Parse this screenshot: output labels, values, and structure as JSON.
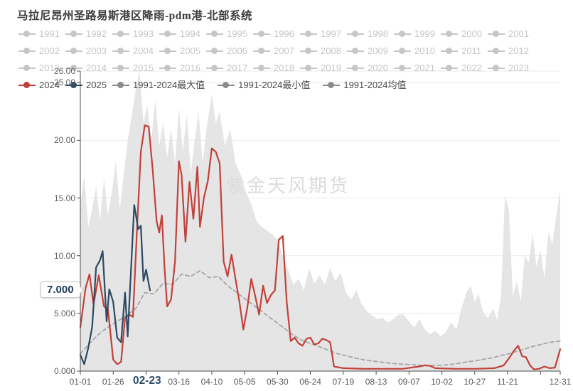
{
  "title": "马拉尼昂州圣路易斯港区降雨-pdm港-北部系统",
  "watermark": "紫金天风期货",
  "legend": {
    "muted_color": "#c6c6c6",
    "years": [
      "1991",
      "1992",
      "1993",
      "1994",
      "1995",
      "1996",
      "1997",
      "1998",
      "1999",
      "2000",
      "2001",
      "2002",
      "2003",
      "2004",
      "2005",
      "2006",
      "2007",
      "2008",
      "2009",
      "2010",
      "2011",
      "2012",
      "2013",
      "2014",
      "2015",
      "2016",
      "2017",
      "2018",
      "2019",
      "2020",
      "2021",
      "2022",
      "2023"
    ],
    "highlight": [
      {
        "key": "2024",
        "label": "2024",
        "color": "#c1413a"
      },
      {
        "key": "2025",
        "label": "2025",
        "color": "#2c4a63"
      },
      {
        "key": "max",
        "label": "1991-2024最大值",
        "color": "#8c8c8c"
      },
      {
        "key": "min",
        "label": "1991-2024最小值",
        "color": "#8c8c8c"
      },
      {
        "key": "avg",
        "label": "1991-2024均值",
        "color": "#8c8c8c"
      }
    ]
  },
  "chart_data": {
    "type": "line",
    "title": "马拉尼昂州圣路易斯港区降雨-pdm港-北部系统",
    "x_unit": "day-of-year",
    "xlim": [
      0,
      365
    ],
    "ylim": [
      0,
      26
    ],
    "grid_values": [
      5,
      10,
      15,
      20,
      25,
      26
    ],
    "y_ticks": [
      {
        "value": 26,
        "label": "26.00"
      },
      {
        "value": 25,
        "label": "25.00"
      },
      {
        "value": 20,
        "label": "20.00"
      },
      {
        "value": 15,
        "label": "15.00"
      },
      {
        "value": 10,
        "label": "10.00"
      },
      {
        "value": 5,
        "label": "5.000"
      },
      {
        "value": 0,
        "label": "0.000"
      }
    ],
    "x_ticks": [
      {
        "day": 0,
        "label": "01-01"
      },
      {
        "day": 25,
        "label": "01-26"
      },
      {
        "day": 50,
        "label": ""
      },
      {
        "day": 75,
        "label": "03-16"
      },
      {
        "day": 100,
        "label": "04-10"
      },
      {
        "day": 125,
        "label": "05-05"
      },
      {
        "day": 150,
        "label": "05-30"
      },
      {
        "day": 175,
        "label": "06-24"
      },
      {
        "day": 200,
        "label": "07-19"
      },
      {
        "day": 225,
        "label": "08-13"
      },
      {
        "day": 250,
        "label": "09-07"
      },
      {
        "day": 275,
        "label": "10-02"
      },
      {
        "day": 300,
        "label": "10-27"
      },
      {
        "day": 325,
        "label": "11-21"
      },
      {
        "day": 350,
        "label": ""
      },
      {
        "day": 365,
        "label": "12-31"
      }
    ],
    "pointer": {
      "x_label": "02-23",
      "y_label": "7.000",
      "day": 53,
      "value": 7.0
    },
    "series": [
      {
        "name": "1991-2024最大值",
        "type": "area",
        "color": "#e5e5e5",
        "x": [
          0,
          3,
          6,
          9,
          12,
          15,
          18,
          21,
          24,
          27,
          30,
          33,
          36,
          39,
          42,
          45,
          48,
          51,
          54,
          57,
          60,
          63,
          66,
          69,
          72,
          75,
          78,
          81,
          84,
          87,
          90,
          93,
          96,
          100,
          103,
          106,
          110,
          114,
          118,
          122,
          126,
          130,
          134,
          138,
          142,
          146,
          150,
          154,
          158,
          162,
          166,
          170,
          174,
          178,
          182,
          186,
          190,
          194,
          198,
          202,
          206,
          210,
          214,
          218,
          222,
          226,
          230,
          234,
          238,
          242,
          246,
          250,
          254,
          258,
          262,
          266,
          270,
          274,
          278,
          282,
          286,
          290,
          294,
          297,
          300,
          303,
          306,
          310,
          314,
          317,
          320,
          323,
          326,
          329,
          332,
          335,
          338,
          341,
          344,
          347,
          350,
          353,
          356,
          359,
          362,
          365
        ],
        "y": [
          14.5,
          16.9,
          12.5,
          14.0,
          16.0,
          13.0,
          16.7,
          13.5,
          15.5,
          18.2,
          14.0,
          17.0,
          20.0,
          22.0,
          24.3,
          26.0,
          21.5,
          23.0,
          20.0,
          23.5,
          19.5,
          21.5,
          18.5,
          21.0,
          18.0,
          22.8,
          19.0,
          22.3,
          17.2,
          20.0,
          22.5,
          18.0,
          21.0,
          24.0,
          21.5,
          22.5,
          19.5,
          21.0,
          18.0,
          17.0,
          15.5,
          14.5,
          13.0,
          12.5,
          12.2,
          11.8,
          11.4,
          10.0,
          8.8,
          7.5,
          8.0,
          7.0,
          8.9,
          7.6,
          8.3,
          7.5,
          8.9,
          7.8,
          8.5,
          6.8,
          6.2,
          7.0,
          5.8,
          5.2,
          4.8,
          4.5,
          4.6,
          4.2,
          4.5,
          4.9,
          4.9,
          4.3,
          3.8,
          4.5,
          3.6,
          3.2,
          3.5,
          3.0,
          3.4,
          4.2,
          3.6,
          5.5,
          6.9,
          7.4,
          6.0,
          6.7,
          5.2,
          4.6,
          5.4,
          4.4,
          6.5,
          15.2,
          14.0,
          6.5,
          7.8,
          6.0,
          10.0,
          9.4,
          11.9,
          9.0,
          10.5,
          8.0,
          12.0,
          11.0,
          13.5,
          15.7
        ]
      },
      {
        "name": "1991-2024最小值",
        "type": "line",
        "color": "#c9c9c9",
        "width": 1,
        "x": [
          0,
          365
        ],
        "y": [
          0,
          0
        ]
      },
      {
        "name": "1991-2024均值",
        "type": "line",
        "dash": true,
        "color": "#a6a6a6",
        "width": 1.8,
        "x": [
          0,
          7,
          14,
          21,
          28,
          35,
          42,
          49,
          56,
          63,
          70,
          77,
          84,
          91,
          98,
          105,
          112,
          119,
          126,
          133,
          140,
          147,
          154,
          161,
          168,
          175,
          182,
          189,
          196,
          203,
          210,
          217,
          224,
          231,
          238,
          245,
          252,
          259,
          266,
          273,
          280,
          287,
          294,
          301,
          308,
          315,
          322,
          329,
          336,
          343,
          350,
          357,
          365
        ],
        "y": [
          1.5,
          2.4,
          3.2,
          3.8,
          4.3,
          4.8,
          5.4,
          6.8,
          6.7,
          7.6,
          7.5,
          8.4,
          8.2,
          8.7,
          8.1,
          8.2,
          7.4,
          6.8,
          6.2,
          5.6,
          5.0,
          4.4,
          3.8,
          3.2,
          2.7,
          2.4,
          2.1,
          1.8,
          1.5,
          1.3,
          1.1,
          0.95,
          0.85,
          0.75,
          0.65,
          0.6,
          0.55,
          0.5,
          0.5,
          0.5,
          0.55,
          0.65,
          0.8,
          0.9,
          1.05,
          1.2,
          1.4,
          1.6,
          1.85,
          2.1,
          2.3,
          2.5,
          2.6
        ]
      },
      {
        "name": "2024",
        "type": "line",
        "color": "#c1413a",
        "width": 2.2,
        "x": [
          0,
          4,
          7,
          10,
          14,
          18,
          21,
          25,
          28,
          31,
          34,
          37,
          40,
          43,
          46,
          49,
          52,
          55,
          58,
          60,
          62,
          64,
          66,
          69,
          72,
          75,
          77,
          80,
          83,
          86,
          89,
          91,
          94,
          97,
          100,
          103,
          106,
          109,
          112,
          115,
          118,
          121,
          124,
          127,
          130,
          133,
          136,
          139,
          142,
          145,
          148,
          151,
          154,
          157,
          160,
          163,
          166,
          169,
          172,
          175,
          178,
          181,
          184,
          187,
          190,
          193,
          200,
          215,
          230,
          245,
          258,
          262,
          266,
          270,
          285,
          300,
          315,
          322,
          326,
          330,
          333,
          336,
          339,
          342,
          345,
          349,
          353,
          357,
          361,
          365
        ],
        "y": [
          3.8,
          7.2,
          8.4,
          5.8,
          8.3,
          5.6,
          5.4,
          1.0,
          0.6,
          0.8,
          4.6,
          4.9,
          4.7,
          12.0,
          19.0,
          21.3,
          21.2,
          17.5,
          13.0,
          12.0,
          13.5,
          9.0,
          5.6,
          6.2,
          9.5,
          18.2,
          17.0,
          11.2,
          16.4,
          13.2,
          17.7,
          12.5,
          15.0,
          16.5,
          19.3,
          19.0,
          18.0,
          9.5,
          8.2,
          10.1,
          8.0,
          6.0,
          3.6,
          5.5,
          8.0,
          6.5,
          4.9,
          7.4,
          5.9,
          6.6,
          7.0,
          11.4,
          11.7,
          6.0,
          2.6,
          2.9,
          2.4,
          2.2,
          2.8,
          2.9,
          2.3,
          2.4,
          2.8,
          2.7,
          2.5,
          0.4,
          0.25,
          0.2,
          0.2,
          0.2,
          0.4,
          0.5,
          0.45,
          0.25,
          0.2,
          0.2,
          0.25,
          0.5,
          1.1,
          1.8,
          2.2,
          1.3,
          1.2,
          0.5,
          0.15,
          0.2,
          0.4,
          0.25,
          0.3,
          1.9
        ]
      },
      {
        "name": "2025",
        "type": "line",
        "color": "#2c4a63",
        "width": 2.2,
        "x": [
          0,
          3,
          6,
          9,
          12,
          15,
          17,
          20,
          22,
          25,
          28,
          31,
          34,
          36,
          39,
          41,
          44,
          46,
          48,
          50,
          53
        ],
        "y": [
          1.4,
          0.6,
          2.0,
          3.8,
          9.0,
          9.6,
          10.4,
          4.3,
          7.1,
          6.0,
          2.9,
          2.5,
          6.8,
          3.0,
          9.8,
          14.4,
          12.3,
          12.6,
          7.8,
          8.8,
          7.0
        ]
      }
    ]
  }
}
